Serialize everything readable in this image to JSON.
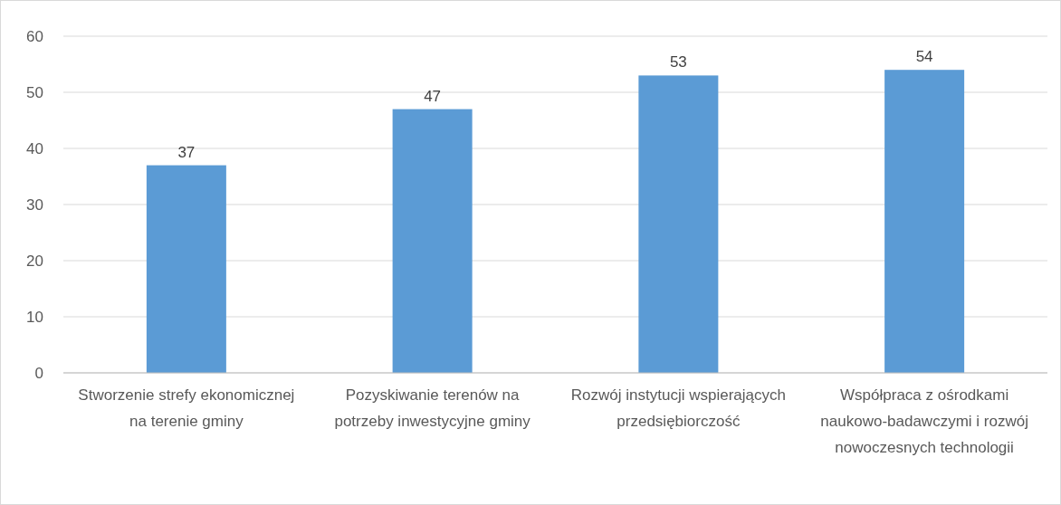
{
  "chart_data": {
    "type": "bar",
    "categories": [
      "Stworzenie strefy ekonomicznej na terenie gminy",
      "Pozyskiwanie terenów na potrzeby inwestycyjne gminy",
      "Rozwój instytucji wspierających przedsiębiorczość",
      "Współpraca z ośrodkami naukowo-badawczymi i rozwój nowoczesnych technologii"
    ],
    "values": [
      37,
      47,
      53,
      54
    ],
    "color": "#5b9bd5",
    "ylim": [
      0,
      60
    ],
    "yticks": [
      0,
      10,
      20,
      30,
      40,
      50,
      60
    ],
    "grid": "y",
    "data_labels": true
  }
}
